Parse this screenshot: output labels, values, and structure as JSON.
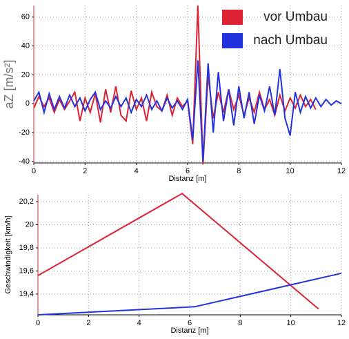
{
  "chart_data": [
    {
      "type": "line",
      "xlabel": "Distanz [m]",
      "ylabel": "aZ [m/s²]",
      "xlim": [
        0,
        12
      ],
      "ylim": [
        -41,
        68
      ],
      "xticks": [
        0,
        2,
        4,
        6,
        8,
        10,
        12
      ],
      "yticks": [
        -40,
        -20,
        0,
        20,
        40,
        60
      ],
      "grid": true,
      "legend": "upper right",
      "series": [
        {
          "name": "vor Umbau",
          "color": "#dd2233",
          "x": [
            0,
            0.2,
            0.4,
            0.6,
            0.8,
            1.0,
            1.2,
            1.4,
            1.6,
            1.8,
            2.0,
            2.2,
            2.4,
            2.6,
            2.8,
            3.0,
            3.2,
            3.4,
            3.6,
            3.8,
            4.0,
            4.2,
            4.4,
            4.6,
            4.8,
            5.0,
            5.2,
            5.4,
            5.6,
            5.8,
            6.0,
            6.2,
            6.4,
            6.6,
            6.8,
            7.0,
            7.2,
            7.4,
            7.6,
            7.8,
            8.0,
            8.2,
            8.4,
            8.6,
            8.8,
            9.0,
            9.2,
            9.4,
            9.6,
            9.8,
            10.0,
            10.2,
            10.4,
            10.6,
            10.8,
            11.0
          ],
          "values": [
            -3,
            5,
            -2,
            4,
            -6,
            3,
            -4,
            2,
            8,
            -12,
            4,
            -6,
            7,
            -13,
            10,
            -6,
            12,
            -8,
            -12,
            9,
            -4,
            4,
            -12,
            8,
            -2,
            -5,
            6,
            -8,
            4,
            -2,
            2,
            -28,
            68,
            -42,
            20,
            -10,
            8,
            -6,
            10,
            -4,
            6,
            -8,
            4,
            -6,
            8,
            -4,
            3,
            -8,
            6,
            -5,
            4,
            -3,
            6,
            -2,
            3,
            -4
          ]
        },
        {
          "name": "nach Umbau",
          "color": "#2233dd",
          "x": [
            0,
            0.2,
            0.4,
            0.6,
            0.8,
            1.0,
            1.2,
            1.4,
            1.6,
            1.8,
            2.0,
            2.2,
            2.4,
            2.6,
            2.8,
            3.0,
            3.2,
            3.4,
            3.6,
            3.8,
            4.0,
            4.2,
            4.4,
            4.6,
            4.8,
            5.0,
            5.2,
            5.4,
            5.6,
            5.8,
            6.0,
            6.2,
            6.4,
            6.6,
            6.8,
            7.0,
            7.2,
            7.4,
            7.6,
            7.8,
            8.0,
            8.2,
            8.4,
            8.6,
            8.8,
            9.0,
            9.2,
            9.4,
            9.6,
            9.8,
            10.0,
            10.2,
            10.4,
            10.6,
            10.8,
            11.0,
            11.2,
            11.4,
            11.6,
            11.8,
            12.0
          ],
          "values": [
            2,
            8,
            -6,
            7,
            -4,
            5,
            -3,
            6,
            -2,
            4,
            -5,
            3,
            8,
            -4,
            2,
            -3,
            5,
            -2,
            4,
            -6,
            3,
            -2,
            6,
            -4,
            2,
            -5,
            4,
            -3,
            2,
            -4,
            3,
            -25,
            30,
            -40,
            28,
            -20,
            22,
            -12,
            10,
            -15,
            12,
            -10,
            8,
            -14,
            6,
            -5,
            12,
            -8,
            24,
            -10,
            -22,
            8,
            -6,
            5,
            -3,
            4,
            -2,
            3,
            -1,
            2,
            0
          ]
        }
      ]
    },
    {
      "type": "line",
      "xlabel": "Distanz [m]",
      "ylabel": "Geschwindigkeit [km/h]",
      "xlim": [
        0,
        12
      ],
      "ylim": [
        19.22,
        20.26
      ],
      "xticks": [
        0,
        2,
        4,
        6,
        8,
        10,
        12
      ],
      "yticks": [
        {
          "value": 19.4,
          "label": "19,4"
        },
        {
          "value": 19.6,
          "label": "19,6"
        },
        {
          "value": 19.8,
          "label": "19,8"
        },
        20,
        {
          "value": 20.2,
          "label": "20,2"
        }
      ],
      "grid": true,
      "series": [
        {
          "color": "#dd2233",
          "x": [
            0,
            5.7,
            11.1
          ],
          "values": [
            19.56,
            20.27,
            19.27
          ]
        },
        {
          "color": "#2233dd",
          "x": [
            0,
            6.2,
            12
          ],
          "values": [
            19.22,
            19.29,
            19.58
          ]
        }
      ]
    }
  ]
}
